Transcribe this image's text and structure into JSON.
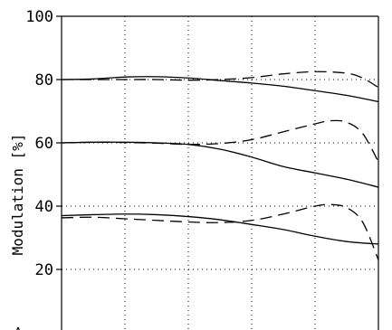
{
  "chart_data": {
    "type": "line",
    "ylabel": "Modulation [%]",
    "ylim": [
      0,
      100
    ],
    "yticks": [
      20,
      40,
      60,
      80,
      100
    ],
    "xlim": [
      0,
      10
    ],
    "x_gridlines": [
      2,
      4,
      6,
      8
    ],
    "grid": "dotted",
    "partial_glyph": ">",
    "series": [
      {
        "style": "solid",
        "x": [
          0,
          1,
          2,
          3,
          4,
          5,
          6,
          7,
          8,
          9,
          10
        ],
        "values": [
          80,
          80.2,
          80.8,
          80.9,
          80.5,
          79.7,
          78.9,
          77.9,
          76.5,
          75,
          73
        ]
      },
      {
        "style": "dashed",
        "x": [
          0,
          1,
          2,
          3,
          4,
          5,
          6,
          7,
          8,
          9,
          9.5,
          10
        ],
        "values": [
          80,
          80,
          80,
          80,
          79.8,
          80,
          80.6,
          81.8,
          82.5,
          82,
          80.5,
          77.5
        ]
      },
      {
        "style": "solid",
        "x": [
          0,
          1,
          2,
          3,
          4,
          5,
          6,
          7,
          8,
          9,
          10
        ],
        "values": [
          60,
          60.2,
          60.2,
          60,
          59.5,
          58,
          55.5,
          52.5,
          50.5,
          48.5,
          46
        ]
      },
      {
        "style": "dashed",
        "x": [
          0,
          1,
          2,
          3,
          4,
          5,
          6,
          7,
          8,
          8.5,
          9,
          9.5,
          10
        ],
        "values": [
          60,
          60.2,
          60.1,
          59.9,
          59.5,
          59.8,
          61,
          63.5,
          66,
          67,
          66.5,
          63,
          54
        ]
      },
      {
        "style": "solid",
        "x": [
          0,
          1,
          2,
          3,
          4,
          5,
          6,
          7,
          8,
          9,
          10
        ],
        "values": [
          37,
          37.3,
          37.5,
          37.3,
          36.7,
          35.7,
          34.2,
          32.6,
          30.5,
          28.8,
          28
        ]
      },
      {
        "style": "dashed",
        "x": [
          0,
          1,
          2,
          3,
          4,
          5,
          6,
          7,
          8,
          8.5,
          9,
          9.5,
          10
        ],
        "values": [
          36.3,
          36.5,
          36,
          35.5,
          35,
          34.8,
          35.5,
          37.5,
          40,
          40.5,
          39.5,
          35,
          23
        ]
      }
    ]
  }
}
